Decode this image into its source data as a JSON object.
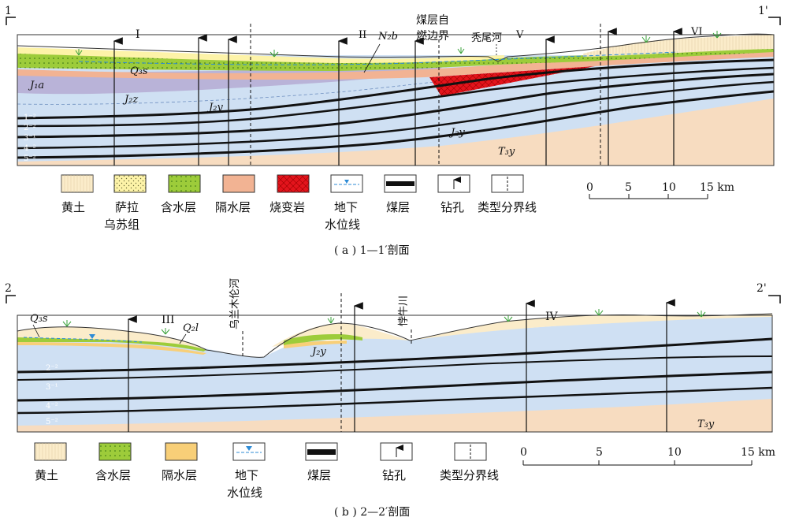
{
  "section_a": {
    "start_label": "1",
    "end_label": "1'",
    "zones": [
      "I",
      "II",
      "V",
      "VI"
    ],
    "formation_labels": {
      "n2b": "N₂b",
      "q3s": "Q₃s",
      "j1a": "J₁a",
      "j2z": "J₂z",
      "j2y_upper": "J₂y",
      "j2y_lower": "J₂y",
      "t3y": "T₃y"
    },
    "seam_labels": [
      "1⁻²",
      "2⁻²",
      "3⁻¹",
      "4⁻²",
      "5⁻²"
    ],
    "annotations": {
      "burn_boundary_line1": "煤层自",
      "burn_boundary_line2": "燃边界",
      "river": "秃尾河"
    },
    "legend": [
      {
        "label": "黄土",
        "label2": ""
      },
      {
        "label": "萨拉",
        "label2": "乌苏组"
      },
      {
        "label": "含水层",
        "label2": ""
      },
      {
        "label": "隔水层",
        "label2": ""
      },
      {
        "label": "烧变岩",
        "label2": ""
      },
      {
        "label": "地下",
        "label2": "水位线"
      },
      {
        "label": "煤层",
        "label2": ""
      },
      {
        "label": "钻孔",
        "label2": ""
      },
      {
        "label": "类型分界线",
        "label2": ""
      }
    ],
    "scale": {
      "ticks": [
        "0",
        "5",
        "10",
        "15 km"
      ]
    },
    "caption": "( a ) 1—1′剖面"
  },
  "section_b": {
    "start_label": "2",
    "end_label": "2'",
    "zones": [
      "III",
      "IV"
    ],
    "formation_labels": {
      "q3s": "Q₃s",
      "q2l": "Q₂l",
      "j2y": "J₂y",
      "t3y": "T₃y"
    },
    "seam_labels": [
      "2⁻²",
      "3⁻¹",
      "4⁻²",
      "5⁻²"
    ],
    "annotations": {
      "river1": "乌兰木伦河",
      "river2": "悖牛川"
    },
    "legend": [
      {
        "label": "黄土",
        "label2": ""
      },
      {
        "label": "含水层",
        "label2": ""
      },
      {
        "label": "隔水层",
        "label2": ""
      },
      {
        "label": "地下",
        "label2": "水位线"
      },
      {
        "label": "煤层",
        "label2": ""
      },
      {
        "label": "钻孔",
        "label2": ""
      },
      {
        "label": "类型分界线",
        "label2": ""
      }
    ],
    "scale": {
      "ticks": [
        "0",
        "5",
        "10",
        "15 km"
      ]
    },
    "caption": "( b ) 2—2′剖面"
  },
  "colors": {
    "loess": "#fbecca",
    "sarawusu": "#fdf3a8",
    "aquifer": "#9dcc3a",
    "aquitard_a": "#f2b393",
    "aquitard_b": "#f8cf78",
    "burnt_rock": "#e3141c",
    "bedrock_blue": "#cfe0f3",
    "j1a": "#b9b3d8",
    "triassic": "#f7dcc0",
    "coal": "#111111",
    "water": "#2d8bd6"
  }
}
